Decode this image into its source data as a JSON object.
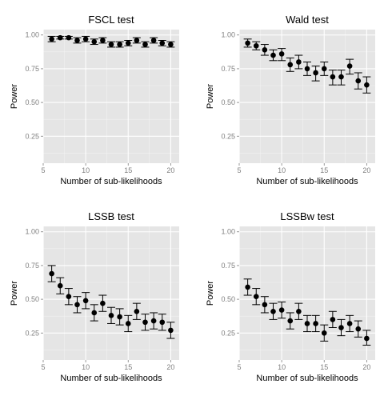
{
  "colors": {
    "panel_bg": "#e5e5e5",
    "grid_major": "#ffffff",
    "grid_minor": "#f2f2f2",
    "point": "#000000",
    "errorbar": "#000000",
    "tick_text": "#7f7f7f"
  },
  "chart_data": [
    {
      "type": "scatter",
      "title": "FSCL test",
      "xlabel": "Number of sub-likelihoods",
      "ylabel": "Power",
      "xlim": [
        5,
        21
      ],
      "ylim": [
        0.05,
        1.04
      ],
      "xticks": [
        "5",
        "10",
        "15",
        "20"
      ],
      "yticks": [
        "0.25",
        "0.50",
        "0.75",
        "1.00"
      ],
      "grid": true,
      "errorbars": true,
      "x": [
        6,
        7,
        8,
        9,
        10,
        11,
        12,
        13,
        14,
        15,
        16,
        17,
        18,
        19,
        20
      ],
      "y": [
        0.97,
        0.98,
        0.98,
        0.96,
        0.97,
        0.95,
        0.96,
        0.93,
        0.93,
        0.94,
        0.96,
        0.93,
        0.96,
        0.94,
        0.93
      ],
      "lower": [
        0.95,
        0.97,
        0.97,
        0.94,
        0.95,
        0.93,
        0.94,
        0.91,
        0.91,
        0.92,
        0.94,
        0.91,
        0.94,
        0.92,
        0.91
      ],
      "upper": [
        0.99,
        0.99,
        0.99,
        0.98,
        0.99,
        0.97,
        0.98,
        0.95,
        0.95,
        0.96,
        0.98,
        0.95,
        0.98,
        0.96,
        0.95
      ]
    },
    {
      "type": "scatter",
      "title": "Wald test",
      "xlabel": "Number of sub-likelihoods",
      "ylabel": "Power",
      "xlim": [
        5,
        21
      ],
      "ylim": [
        0.05,
        1.04
      ],
      "xticks": [
        "5",
        "10",
        "15",
        "20"
      ],
      "yticks": [
        "0.25",
        "0.50",
        "0.75",
        "1.00"
      ],
      "grid": true,
      "errorbars": true,
      "x": [
        6,
        7,
        8,
        9,
        10,
        11,
        12,
        13,
        14,
        15,
        16,
        17,
        18,
        19,
        20
      ],
      "y": [
        0.94,
        0.92,
        0.89,
        0.85,
        0.86,
        0.78,
        0.8,
        0.75,
        0.72,
        0.75,
        0.69,
        0.69,
        0.77,
        0.66,
        0.63
      ],
      "lower": [
        0.91,
        0.89,
        0.85,
        0.81,
        0.81,
        0.73,
        0.75,
        0.7,
        0.66,
        0.7,
        0.63,
        0.63,
        0.71,
        0.6,
        0.57
      ],
      "upper": [
        0.97,
        0.95,
        0.93,
        0.89,
        0.9,
        0.83,
        0.85,
        0.8,
        0.77,
        0.8,
        0.74,
        0.74,
        0.82,
        0.72,
        0.69
      ]
    },
    {
      "type": "scatter",
      "title": "LSSB test",
      "xlabel": "Number of sub-likelihoods",
      "ylabel": "Power",
      "xlim": [
        5,
        21
      ],
      "ylim": [
        0.05,
        1.04
      ],
      "xticks": [
        "5",
        "10",
        "15",
        "20"
      ],
      "yticks": [
        "0.25",
        "0.50",
        "0.75",
        "1.00"
      ],
      "grid": true,
      "errorbars": true,
      "x": [
        6,
        7,
        8,
        9,
        10,
        11,
        12,
        13,
        14,
        15,
        16,
        17,
        18,
        19,
        20
      ],
      "y": [
        0.69,
        0.6,
        0.52,
        0.46,
        0.49,
        0.4,
        0.47,
        0.38,
        0.37,
        0.32,
        0.41,
        0.33,
        0.34,
        0.33,
        0.27
      ],
      "lower": [
        0.63,
        0.54,
        0.46,
        0.4,
        0.43,
        0.34,
        0.41,
        0.32,
        0.31,
        0.26,
        0.35,
        0.27,
        0.28,
        0.27,
        0.21
      ],
      "upper": [
        0.75,
        0.66,
        0.58,
        0.52,
        0.55,
        0.46,
        0.53,
        0.44,
        0.43,
        0.38,
        0.47,
        0.39,
        0.4,
        0.39,
        0.33
      ]
    },
    {
      "type": "scatter",
      "title": "LSSBw test",
      "xlabel": "Number of sub-likelihoods",
      "ylabel": "Power",
      "xlim": [
        5,
        21
      ],
      "ylim": [
        0.05,
        1.04
      ],
      "xticks": [
        "5",
        "10",
        "15",
        "20"
      ],
      "yticks": [
        "0.25",
        "0.50",
        "0.75",
        "1.00"
      ],
      "grid": true,
      "errorbars": true,
      "x": [
        6,
        7,
        8,
        9,
        10,
        11,
        12,
        13,
        14,
        15,
        16,
        17,
        18,
        19,
        20
      ],
      "y": [
        0.59,
        0.52,
        0.46,
        0.41,
        0.42,
        0.34,
        0.41,
        0.32,
        0.32,
        0.25,
        0.35,
        0.29,
        0.32,
        0.28,
        0.21
      ],
      "lower": [
        0.53,
        0.46,
        0.4,
        0.35,
        0.36,
        0.28,
        0.35,
        0.26,
        0.26,
        0.19,
        0.29,
        0.23,
        0.26,
        0.22,
        0.16
      ],
      "upper": [
        0.65,
        0.58,
        0.52,
        0.47,
        0.48,
        0.4,
        0.47,
        0.38,
        0.38,
        0.31,
        0.41,
        0.35,
        0.38,
        0.34,
        0.27
      ]
    }
  ]
}
